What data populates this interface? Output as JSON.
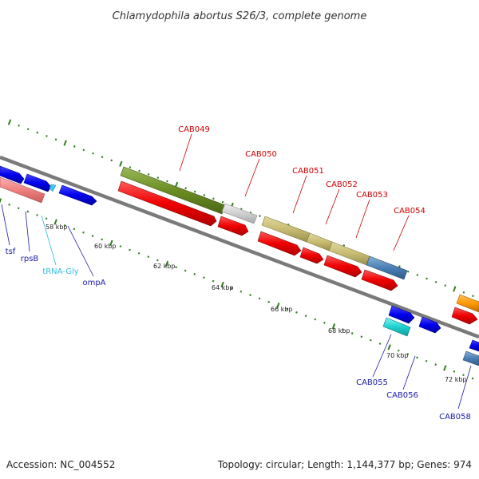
{
  "title": "Chlamydophila abortus S26/3, complete genome",
  "footer": {
    "accession": "Accession: NC_004552",
    "summary": "Topology: circular; Length: 1,144,377 bp; Genes: 974"
  },
  "kbp_labels": [
    "58 kbp",
    "60 kbp",
    "62 kbp",
    "64 kbp",
    "66 kbp",
    "68 kbp",
    "70 kbp",
    "72 kbp"
  ],
  "genes_above": [
    "CAB049",
    "CAB050",
    "CAB051",
    "CAB052",
    "CAB053",
    "CAB054"
  ],
  "genes_below": [
    "tsf",
    "rpsB",
    "tRNA-Gly",
    "ompA",
    "CAB055",
    "CAB056",
    "CAB058"
  ],
  "colors": {
    "red_label": "#cc0000",
    "blue_label": "#1a1aaa",
    "cyan_label": "#33bbdd",
    "tick_green": "#2e7d1a",
    "backbone": "#7a7a7a"
  }
}
